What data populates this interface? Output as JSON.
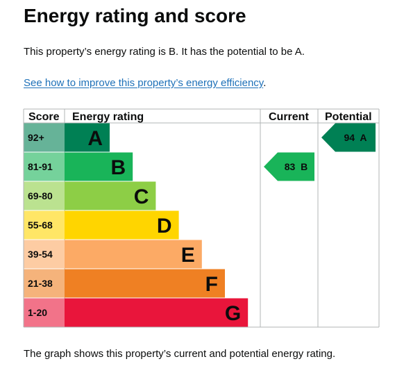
{
  "page": {
    "title": "Energy rating and score",
    "intro": "This property’s energy rating is B. It has the potential to be A.",
    "improve_link": "See how to improve this property’s energy efficiency",
    "improve_link_suffix": ".",
    "footer": "The graph shows this property’s current and potential energy rating."
  },
  "chart_data": {
    "type": "table",
    "headers": {
      "score": "Score",
      "rating": "Energy rating",
      "current": "Current",
      "potential": "Potential"
    },
    "bands": [
      {
        "score": "92+",
        "letter": "A",
        "color": "#008054",
        "score_bg": "#66b398"
      },
      {
        "score": "81-91",
        "letter": "B",
        "color": "#19b459",
        "score_bg": "#75d29b"
      },
      {
        "score": "69-80",
        "letter": "C",
        "color": "#8dce46",
        "score_bg": "#bbe290"
      },
      {
        "score": "55-68",
        "letter": "D",
        "color": "#ffd500",
        "score_bg": "#ffe666"
      },
      {
        "score": "39-54",
        "letter": "E",
        "color": "#fcaa65",
        "score_bg": "#fdcca3"
      },
      {
        "score": "21-38",
        "letter": "F",
        "color": "#ef8023",
        "score_bg": "#f5b37b"
      },
      {
        "score": "1-20",
        "letter": "G",
        "color": "#e9153b",
        "score_bg": "#f27389"
      }
    ],
    "current": {
      "score": 83,
      "letter": "B",
      "band_index": 1,
      "label": "83  B"
    },
    "potential": {
      "score": 94,
      "letter": "A",
      "band_index": 0,
      "label": "94  A"
    }
  }
}
